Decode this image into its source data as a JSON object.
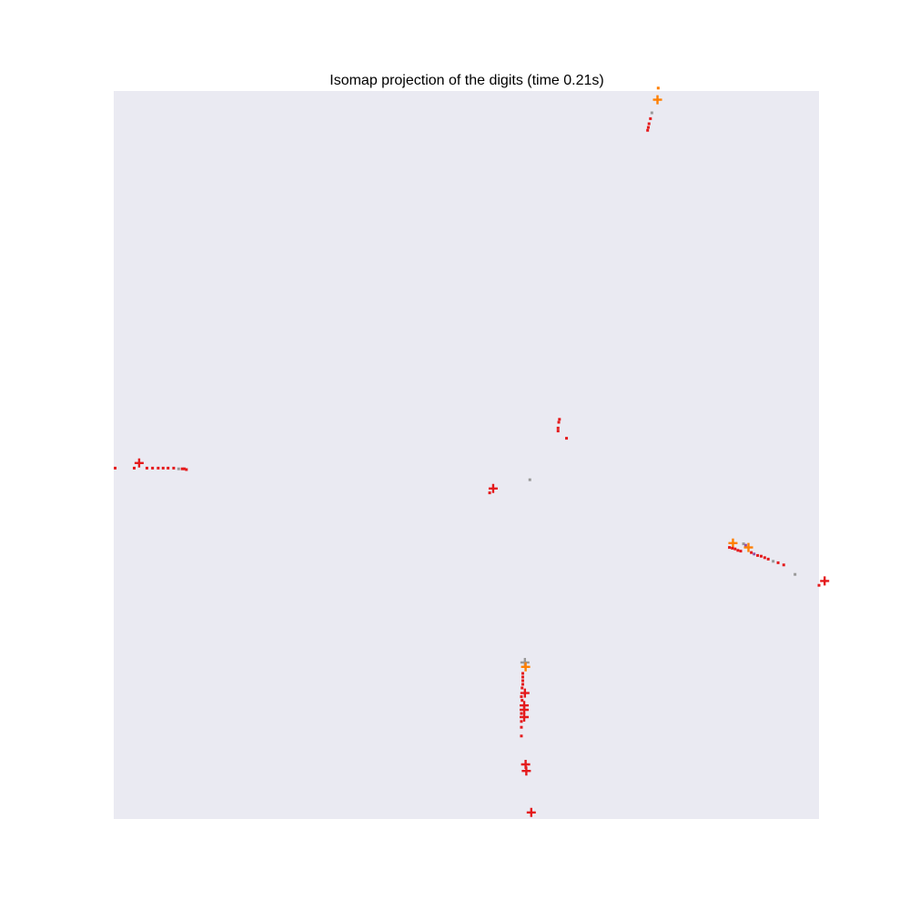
{
  "chart_data": {
    "type": "scatter",
    "title": "Isomap projection of the digits (time 0.21s)",
    "xlabel": "",
    "ylabel": "",
    "xlim": [
      0,
      1
    ],
    "ylim": [
      0,
      1
    ],
    "grid": false,
    "axes_visible": false,
    "background": "#eaeaf2",
    "marker_types": {
      "dot": "small square marker",
      "plus": "plus-sign marker"
    },
    "colors": {
      "red": "#e41a1c",
      "orange": "#ff7f00",
      "gray": "#999999",
      "purple": "#984ea3"
    },
    "points": [
      {
        "x": 0.772,
        "y": 1.004,
        "color": "orange",
        "marker": "dot"
      },
      {
        "x": 0.771,
        "y": 0.988,
        "color": "orange",
        "marker": "plus"
      },
      {
        "x": 0.763,
        "y": 0.97,
        "color": "gray",
        "marker": "dot"
      },
      {
        "x": 0.761,
        "y": 0.962,
        "color": "red",
        "marker": "dot"
      },
      {
        "x": 0.759,
        "y": 0.955,
        "color": "red",
        "marker": "dot"
      },
      {
        "x": 0.758,
        "y": 0.95,
        "color": "red",
        "marker": "dot"
      },
      {
        "x": 0.757,
        "y": 0.946,
        "color": "red",
        "marker": "dot"
      },
      {
        "x": 0.632,
        "y": 0.549,
        "color": "red",
        "marker": "dot"
      },
      {
        "x": 0.631,
        "y": 0.545,
        "color": "red",
        "marker": "dot"
      },
      {
        "x": 0.63,
        "y": 0.537,
        "color": "red",
        "marker": "dot"
      },
      {
        "x": 0.63,
        "y": 0.533,
        "color": "red",
        "marker": "dot"
      },
      {
        "x": 0.642,
        "y": 0.523,
        "color": "red",
        "marker": "dot"
      },
      {
        "x": 0.59,
        "y": 0.466,
        "color": "gray",
        "marker": "dot"
      },
      {
        "x": 0.538,
        "y": 0.454,
        "color": "red",
        "marker": "plus"
      },
      {
        "x": 0.533,
        "y": 0.448,
        "color": "red",
        "marker": "dot"
      },
      {
        "x": 0.002,
        "y": 0.482,
        "color": "red",
        "marker": "dot"
      },
      {
        "x": 0.036,
        "y": 0.489,
        "color": "red",
        "marker": "plus"
      },
      {
        "x": 0.029,
        "y": 0.482,
        "color": "red",
        "marker": "dot"
      },
      {
        "x": 0.047,
        "y": 0.482,
        "color": "red",
        "marker": "dot"
      },
      {
        "x": 0.055,
        "y": 0.482,
        "color": "red",
        "marker": "dot"
      },
      {
        "x": 0.063,
        "y": 0.482,
        "color": "red",
        "marker": "dot"
      },
      {
        "x": 0.07,
        "y": 0.482,
        "color": "red",
        "marker": "dot"
      },
      {
        "x": 0.077,
        "y": 0.482,
        "color": "red",
        "marker": "dot"
      },
      {
        "x": 0.085,
        "y": 0.482,
        "color": "red",
        "marker": "dot"
      },
      {
        "x": 0.092,
        "y": 0.481,
        "color": "gray",
        "marker": "dot"
      },
      {
        "x": 0.097,
        "y": 0.481,
        "color": "red",
        "marker": "dot"
      },
      {
        "x": 0.1,
        "y": 0.481,
        "color": "red",
        "marker": "dot"
      },
      {
        "x": 0.103,
        "y": 0.48,
        "color": "red",
        "marker": "dot"
      },
      {
        "x": 0.878,
        "y": 0.379,
        "color": "orange",
        "marker": "plus"
      },
      {
        "x": 0.873,
        "y": 0.373,
        "color": "red",
        "marker": "dot"
      },
      {
        "x": 0.877,
        "y": 0.372,
        "color": "red",
        "marker": "dot"
      },
      {
        "x": 0.881,
        "y": 0.371,
        "color": "red",
        "marker": "dot"
      },
      {
        "x": 0.885,
        "y": 0.369,
        "color": "red",
        "marker": "dot"
      },
      {
        "x": 0.889,
        "y": 0.368,
        "color": "red",
        "marker": "dot"
      },
      {
        "x": 0.893,
        "y": 0.378,
        "color": "gray",
        "marker": "dot"
      },
      {
        "x": 0.896,
        "y": 0.376,
        "color": "purple",
        "marker": "dot"
      },
      {
        "x": 0.9,
        "y": 0.373,
        "color": "orange",
        "marker": "plus"
      },
      {
        "x": 0.904,
        "y": 0.366,
        "color": "red",
        "marker": "dot"
      },
      {
        "x": 0.908,
        "y": 0.364,
        "color": "purple",
        "marker": "dot"
      },
      {
        "x": 0.913,
        "y": 0.362,
        "color": "red",
        "marker": "dot"
      },
      {
        "x": 0.918,
        "y": 0.361,
        "color": "red",
        "marker": "dot"
      },
      {
        "x": 0.923,
        "y": 0.359,
        "color": "red",
        "marker": "dot"
      },
      {
        "x": 0.928,
        "y": 0.357,
        "color": "red",
        "marker": "dot"
      },
      {
        "x": 0.935,
        "y": 0.354,
        "color": "gray",
        "marker": "dot"
      },
      {
        "x": 0.942,
        "y": 0.352,
        "color": "red",
        "marker": "dot"
      },
      {
        "x": 0.95,
        "y": 0.349,
        "color": "red",
        "marker": "dot"
      },
      {
        "x": 0.966,
        "y": 0.336,
        "color": "gray",
        "marker": "dot"
      },
      {
        "x": 1.008,
        "y": 0.327,
        "color": "red",
        "marker": "plus"
      },
      {
        "x": 1.0,
        "y": 0.321,
        "color": "red",
        "marker": "dot"
      },
      {
        "x": 0.583,
        "y": 0.215,
        "color": "gray",
        "marker": "plus"
      },
      {
        "x": 0.584,
        "y": 0.209,
        "color": "orange",
        "marker": "plus"
      },
      {
        "x": 0.58,
        "y": 0.2,
        "color": "red",
        "marker": "dot"
      },
      {
        "x": 0.58,
        "y": 0.195,
        "color": "red",
        "marker": "dot"
      },
      {
        "x": 0.58,
        "y": 0.19,
        "color": "red",
        "marker": "dot"
      },
      {
        "x": 0.58,
        "y": 0.185,
        "color": "red",
        "marker": "dot"
      },
      {
        "x": 0.579,
        "y": 0.18,
        "color": "red",
        "marker": "dot"
      },
      {
        "x": 0.583,
        "y": 0.173,
        "color": "red",
        "marker": "plus"
      },
      {
        "x": 0.578,
        "y": 0.168,
        "color": "red",
        "marker": "dot"
      },
      {
        "x": 0.579,
        "y": 0.163,
        "color": "red",
        "marker": "dot"
      },
      {
        "x": 0.582,
        "y": 0.156,
        "color": "red",
        "marker": "plus"
      },
      {
        "x": 0.582,
        "y": 0.15,
        "color": "red",
        "marker": "plus"
      },
      {
        "x": 0.578,
        "y": 0.145,
        "color": "red",
        "marker": "dot"
      },
      {
        "x": 0.582,
        "y": 0.14,
        "color": "red",
        "marker": "plus"
      },
      {
        "x": 0.578,
        "y": 0.134,
        "color": "red",
        "marker": "dot"
      },
      {
        "x": 0.578,
        "y": 0.126,
        "color": "red",
        "marker": "dot"
      },
      {
        "x": 0.578,
        "y": 0.114,
        "color": "red",
        "marker": "dot"
      },
      {
        "x": 0.584,
        "y": 0.075,
        "color": "red",
        "marker": "plus"
      },
      {
        "x": 0.585,
        "y": 0.066,
        "color": "red",
        "marker": "plus"
      },
      {
        "x": 0.592,
        "y": 0.009,
        "color": "red",
        "marker": "plus"
      }
    ]
  }
}
